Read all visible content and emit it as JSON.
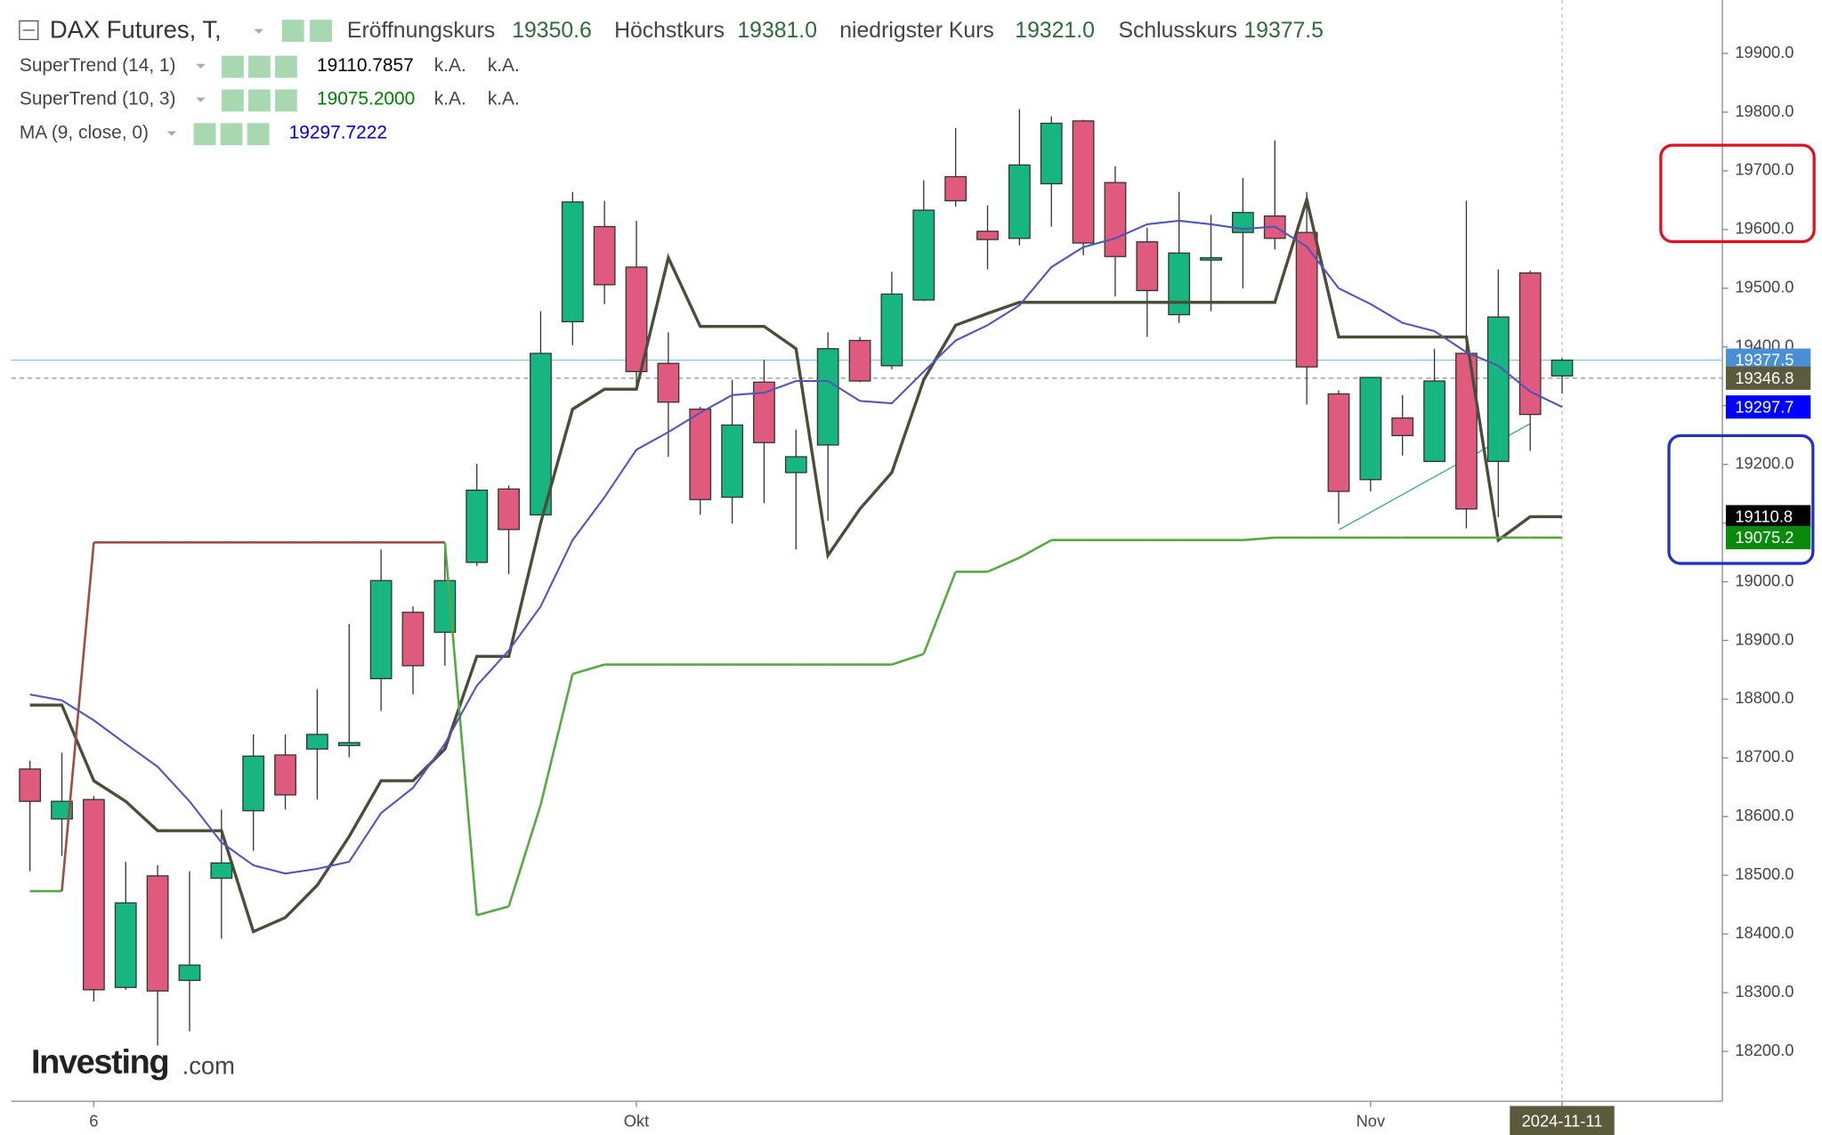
{
  "header": {
    "title": "DAX Futures, T,",
    "ohlc_labels": [
      "Eröffnungskurs",
      "Höchstkurs",
      "niedrigster Kurs",
      "Schlusskurs"
    ],
    "ohlc_value_labels": [
      "19350.6",
      "19381.0",
      "19321.0",
      "19377.5"
    ]
  },
  "watermark": {
    "brand": "Investing",
    "suffix": ".com"
  },
  "chart_data": {
    "type": "candlestick",
    "categories": [
      null,
      null,
      "6",
      null,
      null,
      null,
      null,
      null,
      null,
      null,
      null,
      null,
      null,
      null,
      null,
      null,
      null,
      null,
      null,
      "Okt",
      null,
      null,
      null,
      null,
      null,
      null,
      null,
      null,
      null,
      null,
      null,
      null,
      null,
      null,
      null,
      null,
      null,
      null,
      null,
      null,
      null,
      null,
      "Nov",
      null,
      null,
      null,
      null,
      null,
      "2024-11-11"
    ],
    "open": [
      18681,
      18596,
      18629,
      18309,
      18499,
      18321,
      18495,
      18610,
      18705,
      18715,
      18721,
      18835,
      18948,
      18914,
      19033,
      19158,
      19114,
      19443,
      19605,
      19536,
      19372,
      19294,
      19144,
      19340,
      19186,
      19233,
      19411,
      19368,
      19480,
      19690,
      19597,
      19585,
      19678,
      19785,
      19680,
      19579,
      19455,
      19548,
      19595,
      19623,
      19595,
      19320,
      19174,
      19279,
      19205,
      19389,
      19205,
      19526,
      19350.6
    ],
    "high": [
      18695,
      18709,
      18635,
      18523,
      18517,
      18507,
      18612,
      18740,
      18740,
      18817,
      18928,
      19055,
      18958,
      19065,
      19201,
      19164,
      19461,
      19664,
      19649,
      19615,
      19425,
      19298,
      19344,
      19378,
      19259,
      19425,
      19417,
      19528,
      19684,
      19773,
      19641,
      19805,
      19793,
      19787,
      19708,
      19603,
      19664,
      19625,
      19688,
      19752,
      19664,
      19326,
      19348,
      19318,
      19397,
      19649,
      19532,
      19530,
      19381
    ],
    "low": [
      18507,
      18533,
      18285,
      18305,
      18210,
      18234,
      18392,
      18542,
      18612,
      18629,
      18701,
      18780,
      18808,
      18857,
      19027,
      19013,
      19114,
      19403,
      19473,
      19330,
      19213,
      19114,
      19099,
      19134,
      19055,
      19104,
      19340,
      19362,
      19478,
      19639,
      19532,
      19573,
      19605,
      19556,
      19486,
      19417,
      19441,
      19461,
      19500,
      19566,
      19302,
      19099,
      19154,
      19215,
      19205,
      19091,
      19110,
      19223,
      19321
    ],
    "close": [
      18626,
      18626,
      18305,
      18453,
      18303,
      18347,
      18521,
      18703,
      18637,
      18740,
      18726,
      19002,
      18857,
      19002,
      19156,
      19089,
      19389,
      19647,
      19506,
      19358,
      19306,
      19140,
      19267,
      19237,
      19213,
      19397,
      19342,
      19490,
      19633,
      19649,
      19583,
      19710,
      19781,
      19577,
      19554,
      19496,
      19560,
      19552,
      19629,
      19585,
      19366,
      19154,
      19348,
      19249,
      19342,
      19124,
      19451,
      19285,
      19377.5
    ],
    "up_color": "#17b580",
    "down_color": "#e05a7d",
    "series": [
      {
        "name": "SuperTrend (14, 1)",
        "color": "#4c4c3a",
        "last_label": "19110.7857",
        "label_color": "#000000",
        "extras": [
          "k.A.",
          "k.A."
        ],
        "values": [
          18790,
          18790,
          18661,
          18626,
          18576,
          18576,
          18576,
          18404,
          18428,
          18483,
          18566,
          18661,
          18661,
          18715,
          18873,
          18873,
          19100,
          19294,
          19328,
          19328,
          19552,
          19435,
          19435,
          19435,
          19397,
          19045,
          19124,
          19186,
          19344,
          19437,
          19457,
          19476,
          19476,
          19476,
          19476,
          19476,
          19476,
          19476,
          19476,
          19476,
          19651,
          19417,
          19417,
          19417,
          19417,
          19417,
          19071,
          19110.8,
          19110.8
        ]
      },
      {
        "name": "SuperTrend (10, 3)",
        "color": "#58a844",
        "above_color": "#9b4f43",
        "last_label": "19075.2000",
        "label_color": "#008000",
        "extras": [
          "k.A.",
          "k.A."
        ],
        "values": [
          18473,
          18473,
          19067,
          19067,
          19067,
          19067,
          19067,
          19067,
          19067,
          19067,
          19067,
          19067,
          19067,
          19067,
          18432,
          18447,
          18620,
          18843,
          18859,
          18859,
          18859,
          18859,
          18859,
          18859,
          18859,
          18859,
          18859,
          18859,
          18877,
          19017,
          19017,
          19041,
          19071,
          19071,
          19071,
          19071,
          19071,
          19071,
          19071,
          19075.2,
          19075.2,
          19075.2,
          19075.2,
          19075.2,
          19075.2,
          19075.2,
          19075.2,
          19075.2,
          19075.2
        ]
      },
      {
        "name": "MA (9, close, 0)",
        "color": "#5055b8",
        "last_label": "19297.7222",
        "label_color": "#0000cc",
        "values": [
          18808,
          18798,
          18764,
          18724,
          18685,
          18626,
          18556,
          18517,
          18503,
          18511,
          18523,
          18606,
          18649,
          18724,
          18823,
          18883,
          18958,
          19071,
          19144,
          19225,
          19255,
          19288,
          19318,
          19322,
          19342,
          19342,
          19308,
          19304,
          19358,
          19411,
          19437,
          19471,
          19536,
          19570,
          19585,
          19609,
          19615,
          19609,
          19601,
          19605,
          19571,
          19500,
          19473,
          19441,
          19427,
          19391,
          19368,
          19324,
          19297.7
        ]
      }
    ],
    "ylim": [
      18115,
      19991
    ],
    "yticks": [
      {
        "value": 18200,
        "label": "18200.0"
      },
      {
        "value": 18300,
        "label": "18300.0"
      },
      {
        "value": 18400,
        "label": "18400.0"
      },
      {
        "value": 18500,
        "label": "18500.0"
      },
      {
        "value": 18600,
        "label": "18600.0"
      },
      {
        "value": 18700,
        "label": "18700.0"
      },
      {
        "value": 18800,
        "label": "18800.0"
      },
      {
        "value": 18900,
        "label": "18900.0"
      },
      {
        "value": 19000,
        "label": "19000.0"
      },
      {
        "value": 19100,
        "label": "19100.0"
      },
      {
        "value": 19200,
        "label": "19200.0"
      },
      {
        "value": 19300,
        "label": "19300.0"
      },
      {
        "value": 19400,
        "label": "19400.0"
      },
      {
        "value": 19500,
        "label": "19500.0"
      },
      {
        "value": 19600,
        "label": "19600.0"
      },
      {
        "value": 19700,
        "label": "19700.0"
      },
      {
        "value": 19800,
        "label": "19800.0"
      },
      {
        "value": 19900,
        "label": "19900.0"
      }
    ],
    "price_tags": [
      {
        "value": 19377.5,
        "label": "19377.5",
        "color": "#4a8fd6",
        "style": "solid"
      },
      {
        "value": 19346.8,
        "label": "19346.8",
        "color": "#5b5a3c",
        "style": "dashed"
      },
      {
        "value": 19297.7,
        "label": "19297.7",
        "color": "#0000ff"
      },
      {
        "value": 19110.8,
        "label": "19110.8",
        "color": "#000000"
      },
      {
        "value": 19075.2,
        "label": "19075.2",
        "color": "#0a8a0a"
      }
    ]
  }
}
